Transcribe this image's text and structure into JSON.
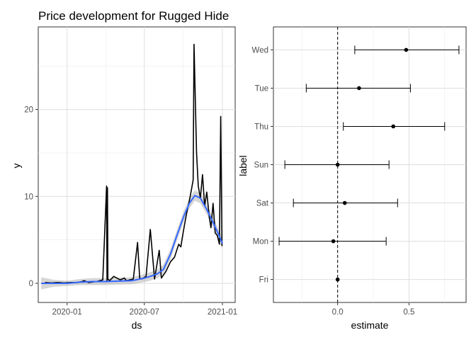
{
  "chart_data": [
    {
      "type": "line",
      "title": "Price development for Rugged Hide",
      "xlabel": "ds",
      "ylabel": "y",
      "xlim": [
        "2019-10-25",
        "2021-01-31"
      ],
      "ylim": [
        -2.2,
        29.5
      ],
      "y_ticks": [
        0,
        10,
        20
      ],
      "y_tick_labels": [
        "0",
        "10",
        "20"
      ],
      "x_ticks": [
        "2020-01-01",
        "2020-07-01",
        "2021-01-01"
      ],
      "x_tick_labels": [
        "2020-01",
        "2020-07",
        "2021-01"
      ],
      "grid": true,
      "series": [
        {
          "values_kind": "price",
          "x": [
            "2019-11-10",
            "2019-11-25",
            "2019-12-10",
            "2019-12-25",
            "2020-01-10",
            "2020-01-25",
            "2020-02-05",
            "2020-02-10",
            "2020-02-20",
            "2020-03-10",
            "2020-03-25",
            "2020-04-03",
            "2020-04-04",
            "2020-04-05",
            "2020-04-06",
            "2020-04-10",
            "2020-04-20",
            "2020-05-05",
            "2020-05-15",
            "2020-05-20",
            "2020-06-05",
            "2020-06-15",
            "2020-06-20",
            "2020-06-25",
            "2020-07-05",
            "2020-07-15",
            "2020-07-25",
            "2020-08-05",
            "2020-08-10",
            "2020-08-20",
            "2020-09-01",
            "2020-09-10",
            "2020-09-20",
            "2020-09-25",
            "2020-10-01",
            "2020-10-05",
            "2020-10-10",
            "2020-10-15",
            "2020-10-20",
            "2020-10-24",
            "2020-10-26",
            "2020-11-01",
            "2020-11-05",
            "2020-11-10",
            "2020-11-15",
            "2020-11-20",
            "2020-11-25",
            "2020-12-01",
            "2020-12-05",
            "2020-12-10",
            "2020-12-15",
            "2020-12-20",
            "2020-12-25",
            "2020-12-28",
            "2020-12-31"
          ],
          "y": [
            0.1,
            0.05,
            0.1,
            0.05,
            0.1,
            0.1,
            0.2,
            0.3,
            0.1,
            0.2,
            0.4,
            11.2,
            0.3,
            11.0,
            0.5,
            0.3,
            0.8,
            0.4,
            0.6,
            0.3,
            0.5,
            4.7,
            0.6,
            0.5,
            0.8,
            6.2,
            0.5,
            3.8,
            0.6,
            1.3,
            2.5,
            3.0,
            4.5,
            4.2,
            6.0,
            7.1,
            8.4,
            9.5,
            10.8,
            11.9,
            27.5,
            15.0,
            11.2,
            9.8,
            12.5,
            8.9,
            10.5,
            7.6,
            6.4,
            9.2,
            5.8,
            5.5,
            4.5,
            19.2,
            4.3
          ]
        },
        {
          "name": "trend",
          "x": [
            "2019-11-01",
            "2019-12-01",
            "2020-01-01",
            "2020-02-01",
            "2020-03-01",
            "2020-04-01",
            "2020-05-01",
            "2020-06-01",
            "2020-07-01",
            "2020-07-15",
            "2020-08-01",
            "2020-08-15",
            "2020-09-01",
            "2020-09-15",
            "2020-10-01",
            "2020-10-15",
            "2020-10-28",
            "2020-11-10",
            "2020-11-25",
            "2020-12-10",
            "2020-12-25",
            "2021-01-01"
          ],
          "y": [
            0.0,
            0.0,
            0.0,
            0.15,
            0.2,
            0.2,
            0.25,
            0.3,
            0.6,
            0.8,
            1.1,
            1.6,
            3.4,
            5.4,
            7.6,
            9.2,
            10.1,
            9.8,
            8.5,
            7.0,
            5.4,
            4.6
          ],
          "band": [
            0.7,
            0.4,
            0.3,
            0.35,
            0.4,
            0.4,
            0.4,
            0.4,
            0.45,
            0.5,
            0.5,
            0.55,
            0.6,
            0.6,
            0.6,
            0.6,
            0.6,
            0.6,
            0.6,
            0.6,
            0.6,
            0.6
          ]
        }
      ]
    },
    {
      "type": "scatter",
      "xlabel": "estimate",
      "ylabel": "label",
      "xlim": [
        -0.45,
        0.9
      ],
      "x_ticks": [
        0.0,
        0.5
      ],
      "x_tick_labels": [
        "0.0",
        "0.5"
      ],
      "reference_line": 0,
      "grid": true,
      "categories": [
        "Fri",
        "Mon",
        "Sat",
        "Sun",
        "Thu",
        "Tue",
        "Wed"
      ],
      "estimate": [
        0.0,
        -0.03,
        0.05,
        0.0,
        0.39,
        0.15,
        0.48
      ],
      "conf_low": [
        0.0,
        -0.41,
        -0.31,
        -0.37,
        0.04,
        -0.22,
        0.12
      ],
      "conf_high": [
        0.0,
        0.34,
        0.42,
        0.36,
        0.75,
        0.51,
        0.85
      ]
    }
  ]
}
